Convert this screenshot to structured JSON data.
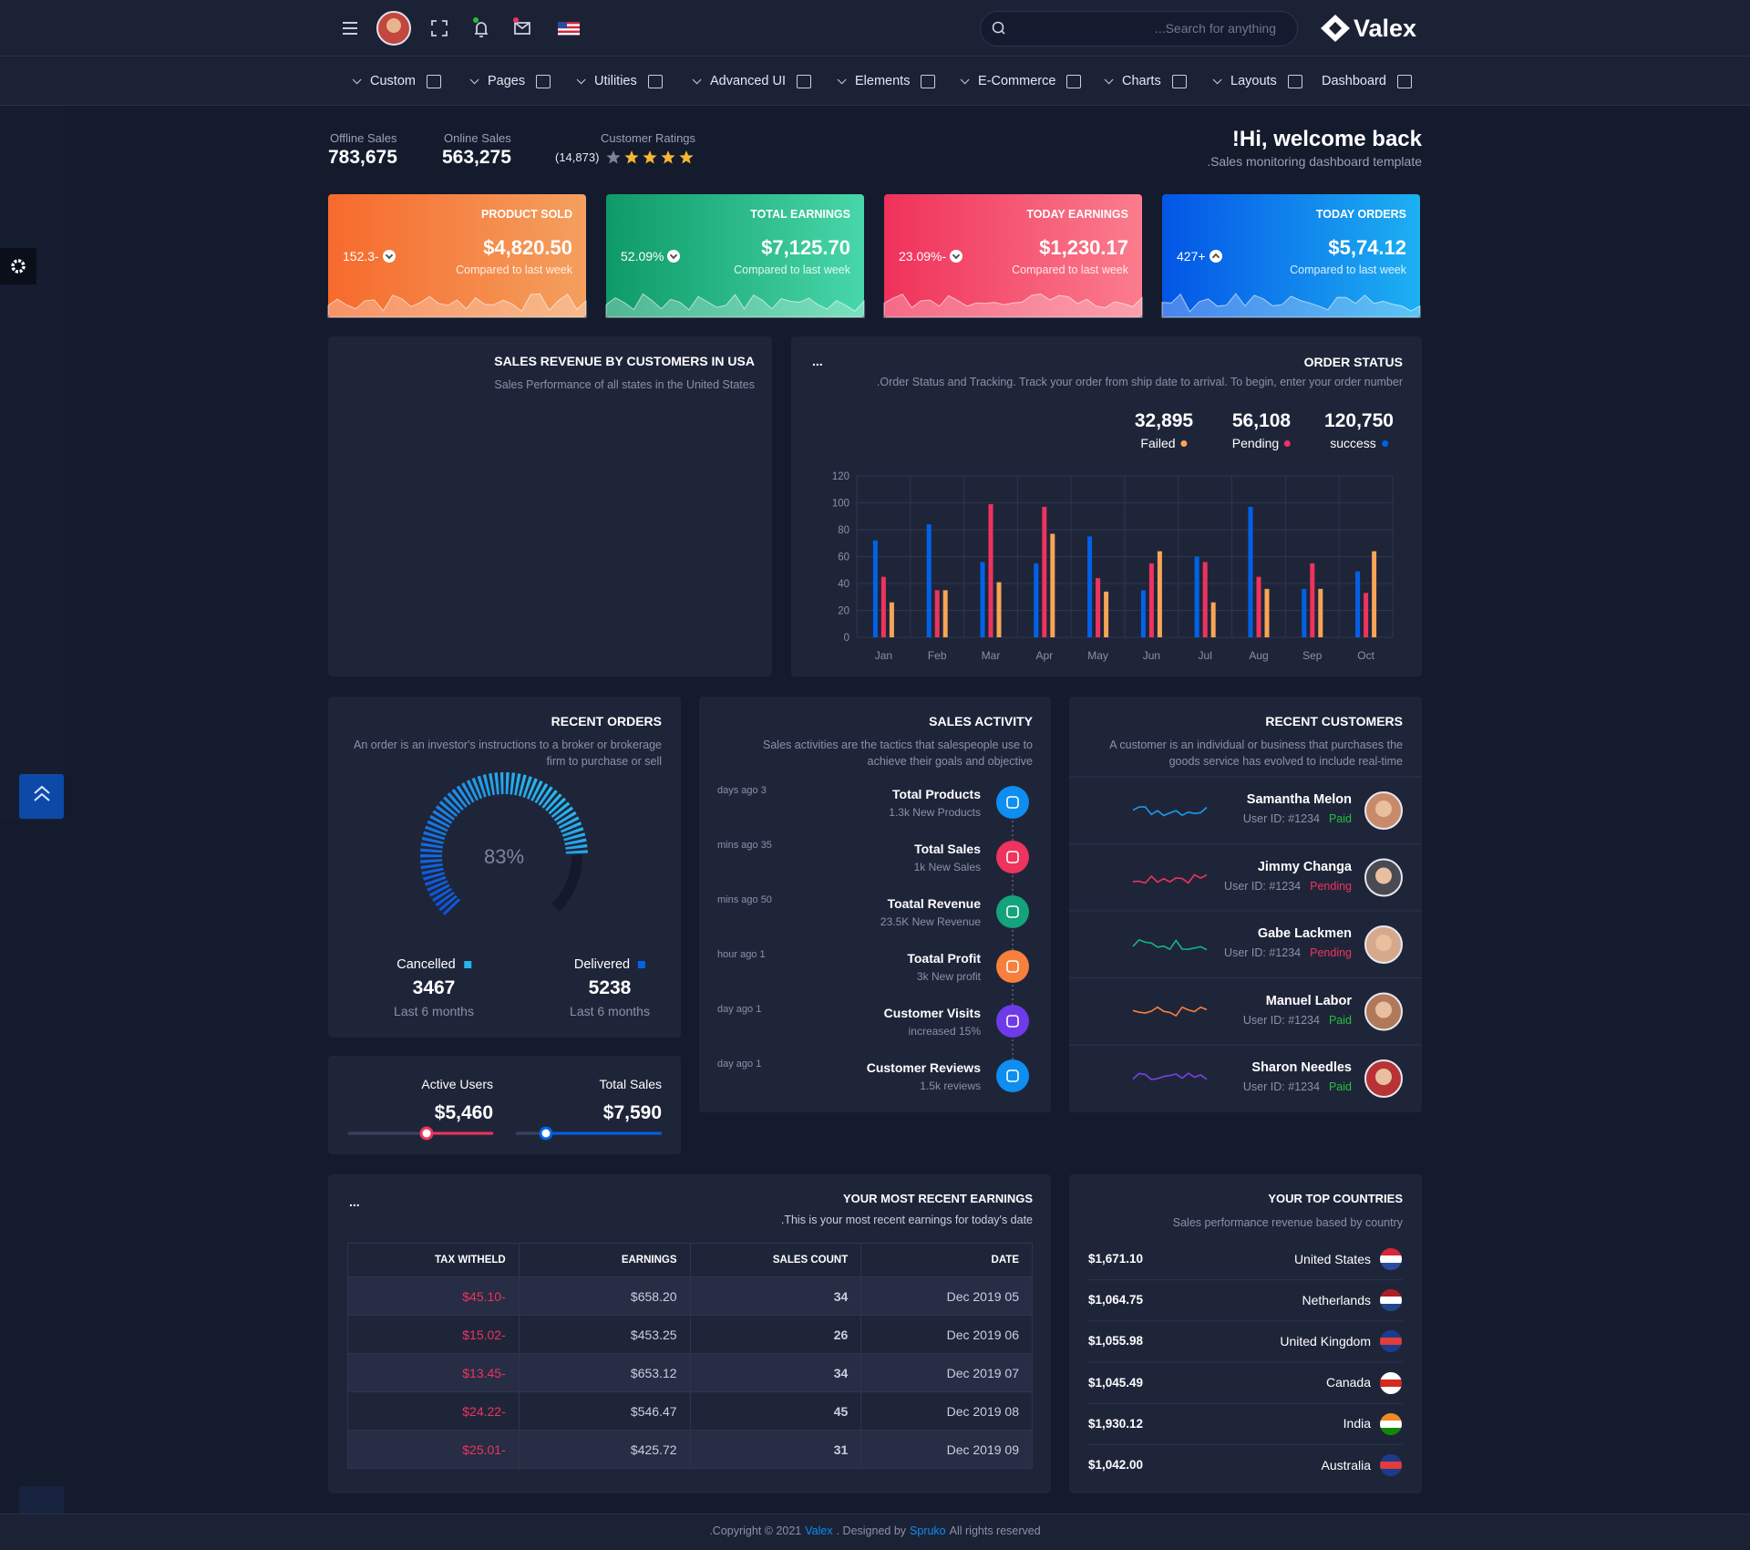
{
  "header": {
    "search_placeholder": "...Search for anything",
    "brand": "Valex"
  },
  "nav": [
    "Custom",
    "Pages",
    "Utilities",
    "Advanced UI",
    "Elements",
    "E-Commerce",
    "Charts",
    "Layouts",
    "Dashboard"
  ],
  "summary": {
    "offline_label": "Offline Sales",
    "offline_value": "783,675",
    "online_label": "Online Sales",
    "online_value": "563,275",
    "ratings_label": "Customer Ratings",
    "ratings_count": "(14,873)"
  },
  "welcome": {
    "title": "!Hi, welcome back",
    "subtitle": ".Sales monitoring dashboard template"
  },
  "cards": [
    {
      "title": "PRODUCT SOLD",
      "value": "$4,820.50",
      "note": "Compared to last week",
      "change": "152.3-",
      "direction": "down"
    },
    {
      "title": "TOTAL EARNINGS",
      "value": "$7,125.70",
      "note": "Compared to last week",
      "change": "52.09%",
      "direction": "down"
    },
    {
      "title": "TODAY EARNINGS",
      "value": "$1,230.17",
      "note": "Compared to last week",
      "change": "23.09%-",
      "direction": "down"
    },
    {
      "title": "TODAY ORDERS",
      "value": "$5,74.12",
      "note": "Compared to last week",
      "change": "427+",
      "direction": "up"
    }
  ],
  "map": {
    "title": "SALES REVENUE BY CUSTOMERS IN USA",
    "subtitle": "Sales Performance of all states in the United States"
  },
  "order_status": {
    "menu": "...",
    "title": "ORDER STATUS",
    "subtitle": ".Order Status and Tracking. Track your order from ship date to arrival. To begin, enter your order number"
  },
  "chart_data": [
    {
      "type": "bar",
      "categories": [
        "Jan",
        "Feb",
        "Mar",
        "Apr",
        "May",
        "Jun",
        "Jul",
        "Aug",
        "Sep",
        "Oct"
      ],
      "series": [
        {
          "name": "success",
          "total": "120,750",
          "color": "#0162e8",
          "values": [
            72,
            84,
            56,
            55,
            75,
            35,
            60,
            97,
            36,
            49
          ]
        },
        {
          "name": "Pending",
          "total": "56,108",
          "color": "#ee335e",
          "values": [
            45,
            35,
            99,
            97,
            44,
            55,
            56,
            45,
            55,
            33
          ]
        },
        {
          "name": "Failed",
          "total": "32,895",
          "color": "#f7a556",
          "values": [
            26,
            35,
            41,
            77,
            34,
            64,
            26,
            36,
            36,
            64
          ]
        }
      ],
      "ylim": [
        0,
        120
      ],
      "yticks": [
        0,
        20,
        40,
        60,
        80,
        100,
        120
      ],
      "grid": true
    },
    {
      "type": "radial",
      "values": [
        83
      ],
      "value_labels": [
        "83%"
      ],
      "ylim": [
        0,
        100
      ]
    }
  ],
  "recent_orders": {
    "title": "RECENT ORDERS",
    "subtitle": "An order is an investor's instructions to a broker or brokerage firm to purchase or sell",
    "stats": [
      {
        "label": "Cancelled",
        "value": "3467",
        "note": "Last 6 months",
        "color": "#22b8e8"
      },
      {
        "label": "Delivered",
        "value": "5238",
        "note": "Last 6 months",
        "color": "#0162e8"
      }
    ]
  },
  "users": [
    {
      "label": "Active Users",
      "value": "$5,460"
    },
    {
      "label": "Total Sales",
      "value": "$7,590"
    }
  ],
  "sales_activity": {
    "title": "SALES ACTIVITY",
    "subtitle": "Sales activities are the tactics that salespeople use to achieve their goals and objective",
    "items": [
      {
        "time": "days ago 3",
        "title": "Total Products",
        "detail": "1.3k New Products"
      },
      {
        "time": "mins ago 35",
        "title": "Total Sales",
        "detail": "1k New Sales"
      },
      {
        "time": "mins ago 50",
        "title": "Toatal Revenue",
        "detail": "23.5K New Revenue"
      },
      {
        "time": "hour ago 1",
        "title": "Toatal Profit",
        "detail": "3k New profit"
      },
      {
        "time": "day ago 1",
        "title": "Customer Visits",
        "detail": "increased 15%"
      },
      {
        "time": "day ago 1",
        "title": "Customer Reviews",
        "detail": "1.5k reviews"
      }
    ]
  },
  "recent_customers": {
    "title": "RECENT CUSTOMERS",
    "subtitle": "A customer is an individual or business that purchases the goods service has evolved to include real-time",
    "items": [
      {
        "name": "Samantha Melon",
        "id": "User ID: #1234",
        "status": "Paid",
        "status_color": "#22c03c"
      },
      {
        "name": "Jimmy Changa",
        "id": "User ID: #1234",
        "status": "Pending",
        "status_color": "#ee335e"
      },
      {
        "name": "Gabe Lackmen",
        "id": "User ID: #1234",
        "status": "Pending",
        "status_color": "#ee335e"
      },
      {
        "name": "Manuel Labor",
        "id": "User ID: #1234",
        "status": "Paid",
        "status_color": "#22c03c"
      },
      {
        "name": "Sharon Needles",
        "id": "User ID: #1234",
        "status": "Paid",
        "status_color": "#22c03c"
      }
    ]
  },
  "earnings": {
    "menu": "...",
    "title": "YOUR MOST RECENT EARNINGS",
    "subtitle": ".This is your most recent earnings for today's date",
    "columns": [
      "TAX WITHELD",
      "EARNINGS",
      "SALES COUNT",
      "DATE"
    ],
    "rows": [
      [
        "$45.10-",
        "$658.20",
        34,
        "Dec 2019 05"
      ],
      [
        "$15.02-",
        "$453.25",
        26,
        "Dec 2019 06"
      ],
      [
        "$13.45-",
        "$653.12",
        34,
        "Dec 2019 07"
      ],
      [
        "$24.22-",
        "$546.47",
        45,
        "Dec 2019 08"
      ],
      [
        "$25.01-",
        "$425.72",
        31,
        "Dec 2019 09"
      ]
    ]
  },
  "countries": {
    "title": "YOUR TOP COUNTRIES",
    "subtitle": "Sales performance revenue based by country",
    "items": [
      {
        "amount": "$1,671.10",
        "name": "United States"
      },
      {
        "amount": "$1,064.75",
        "name": "Netherlands"
      },
      {
        "amount": "$1,055.98",
        "name": "United Kingdom"
      },
      {
        "amount": "$1,045.49",
        "name": "Canada"
      },
      {
        "amount": "$1,930.12",
        "name": "India"
      },
      {
        "amount": "$1,042.00",
        "name": "Australia"
      }
    ]
  },
  "footer": {
    "prefix": ".Copyright © 2021",
    "brand": "Valex",
    "middle": ". Designed by",
    "designer": "Spruko",
    "suffix": "All rights reserved"
  }
}
